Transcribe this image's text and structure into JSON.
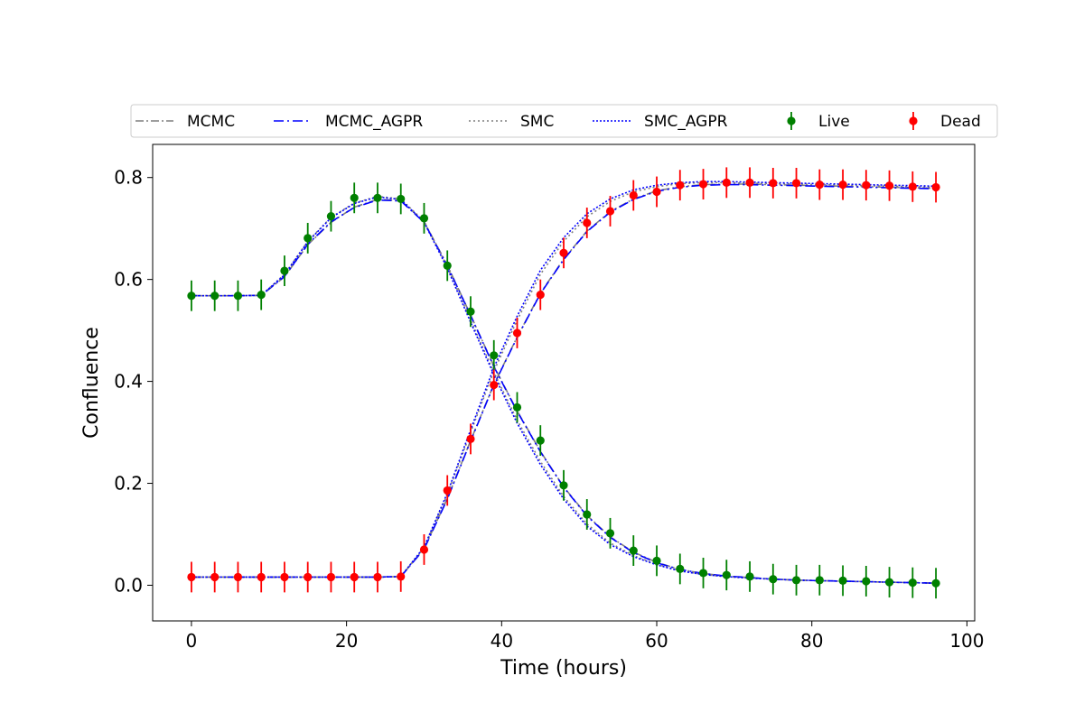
{
  "chart_data": {
    "type": "scatter",
    "title": "",
    "xlabel": "Time (hours)",
    "ylabel": "Confluence",
    "xlim": [
      -5,
      101
    ],
    "ylim": [
      -0.07,
      0.865
    ],
    "xticks": [
      0,
      20,
      40,
      60,
      80,
      100
    ],
    "yticks": [
      0.0,
      0.2,
      0.4,
      0.6,
      0.8
    ],
    "xtick_labels": [
      "0",
      "20",
      "40",
      "60",
      "80",
      "100"
    ],
    "ytick_labels": [
      "0.0",
      "0.2",
      "0.4",
      "0.6",
      "0.8"
    ],
    "grid": false,
    "legend": {
      "placement": "top, outside plot, single row",
      "entries": [
        "MCMC",
        "MCMC_AGPR",
        "SMC",
        "SMC_AGPR",
        "Live",
        "Dead"
      ]
    },
    "x": [
      0,
      3,
      6,
      9,
      12,
      15,
      18,
      21,
      24,
      27,
      30,
      33,
      36,
      39,
      42,
      45,
      48,
      51,
      54,
      57,
      60,
      63,
      66,
      69,
      72,
      75,
      78,
      81,
      84,
      87,
      90,
      93,
      96
    ],
    "data_series": [
      {
        "name": "Live",
        "color": "#008000",
        "marker": "circle",
        "error": 0.03,
        "values": [
          0.568,
          0.568,
          0.568,
          0.57,
          0.617,
          0.681,
          0.724,
          0.76,
          0.76,
          0.758,
          0.72,
          0.627,
          0.537,
          0.451,
          0.349,
          0.284,
          0.196,
          0.139,
          0.102,
          0.068,
          0.048,
          0.032,
          0.024,
          0.02,
          0.017,
          0.012,
          0.01,
          0.01,
          0.009,
          0.008,
          0.006,
          0.005,
          0.004
        ]
      },
      {
        "name": "Dead",
        "color": "#ff0000",
        "marker": "circle",
        "error": 0.03,
        "values": [
          0.016,
          0.016,
          0.016,
          0.016,
          0.016,
          0.016,
          0.016,
          0.016,
          0.016,
          0.017,
          0.07,
          0.186,
          0.287,
          0.393,
          0.495,
          0.57,
          0.652,
          0.711,
          0.734,
          0.765,
          0.772,
          0.785,
          0.787,
          0.79,
          0.79,
          0.789,
          0.789,
          0.786,
          0.786,
          0.785,
          0.784,
          0.782,
          0.781
        ]
      }
    ],
    "fit_series": [
      {
        "name": "MCMC",
        "color": "#7f7f7f",
        "dash": "9 3 2 3",
        "live": [
          0.568,
          0.568,
          0.568,
          0.569,
          0.605,
          0.668,
          0.712,
          0.742,
          0.757,
          0.755,
          0.713,
          0.628,
          0.53,
          0.43,
          0.342,
          0.263,
          0.193,
          0.137,
          0.095,
          0.065,
          0.045,
          0.031,
          0.023,
          0.018,
          0.015,
          0.012,
          0.01,
          0.009,
          0.008,
          0.007,
          0.006,
          0.005,
          0.004
        ],
        "dead": [
          0.016,
          0.016,
          0.016,
          0.016,
          0.016,
          0.016,
          0.016,
          0.016,
          0.016,
          0.017,
          0.072,
          0.17,
          0.284,
          0.394,
          0.487,
          0.573,
          0.64,
          0.695,
          0.733,
          0.758,
          0.774,
          0.782,
          0.786,
          0.787,
          0.787,
          0.786,
          0.785,
          0.784,
          0.783,
          0.782,
          0.781,
          0.78,
          0.779
        ]
      },
      {
        "name": "MCMC_AGPR",
        "color": "#0000ff",
        "dash": "11 4 2 4",
        "live": [
          0.568,
          0.568,
          0.568,
          0.569,
          0.606,
          0.669,
          0.713,
          0.741,
          0.756,
          0.754,
          0.712,
          0.627,
          0.529,
          0.429,
          0.341,
          0.262,
          0.192,
          0.136,
          0.094,
          0.064,
          0.044,
          0.031,
          0.023,
          0.018,
          0.015,
          0.012,
          0.01,
          0.009,
          0.008,
          0.007,
          0.006,
          0.005,
          0.004
        ],
        "dead": [
          0.016,
          0.016,
          0.016,
          0.016,
          0.016,
          0.016,
          0.016,
          0.016,
          0.016,
          0.017,
          0.071,
          0.169,
          0.283,
          0.393,
          0.486,
          0.572,
          0.639,
          0.694,
          0.732,
          0.757,
          0.773,
          0.781,
          0.785,
          0.786,
          0.786,
          0.785,
          0.784,
          0.783,
          0.782,
          0.781,
          0.78,
          0.779,
          0.778
        ]
      },
      {
        "name": "SMC",
        "color": "#7f7f7f",
        "dash": "2 3",
        "live": [
          0.568,
          0.568,
          0.568,
          0.569,
          0.61,
          0.675,
          0.722,
          0.75,
          0.763,
          0.758,
          0.714,
          0.625,
          0.52,
          0.418,
          0.324,
          0.243,
          0.174,
          0.12,
          0.083,
          0.058,
          0.041,
          0.029,
          0.021,
          0.017,
          0.014,
          0.012,
          0.01,
          0.009,
          0.008,
          0.007,
          0.006,
          0.005,
          0.004
        ],
        "dead": [
          0.016,
          0.016,
          0.016,
          0.016,
          0.016,
          0.016,
          0.016,
          0.016,
          0.016,
          0.017,
          0.074,
          0.178,
          0.3,
          0.42,
          0.52,
          0.61,
          0.675,
          0.723,
          0.753,
          0.772,
          0.782,
          0.788,
          0.79,
          0.79,
          0.789,
          0.788,
          0.787,
          0.786,
          0.785,
          0.784,
          0.783,
          0.782,
          0.781
        ]
      },
      {
        "name": "SMC_AGPR",
        "color": "#0000ff",
        "dash": "2 2",
        "live": [
          0.568,
          0.568,
          0.568,
          0.569,
          0.609,
          0.674,
          0.721,
          0.749,
          0.762,
          0.757,
          0.712,
          0.622,
          0.516,
          0.413,
          0.318,
          0.237,
          0.169,
          0.116,
          0.08,
          0.056,
          0.04,
          0.028,
          0.021,
          0.017,
          0.014,
          0.012,
          0.01,
          0.009,
          0.008,
          0.007,
          0.006,
          0.005,
          0.004
        ],
        "dead": [
          0.016,
          0.016,
          0.016,
          0.016,
          0.016,
          0.016,
          0.016,
          0.016,
          0.016,
          0.017,
          0.075,
          0.181,
          0.305,
          0.427,
          0.528,
          0.618,
          0.682,
          0.729,
          0.758,
          0.776,
          0.785,
          0.79,
          0.792,
          0.792,
          0.791,
          0.79,
          0.789,
          0.788,
          0.787,
          0.786,
          0.785,
          0.784,
          0.783
        ]
      }
    ]
  }
}
